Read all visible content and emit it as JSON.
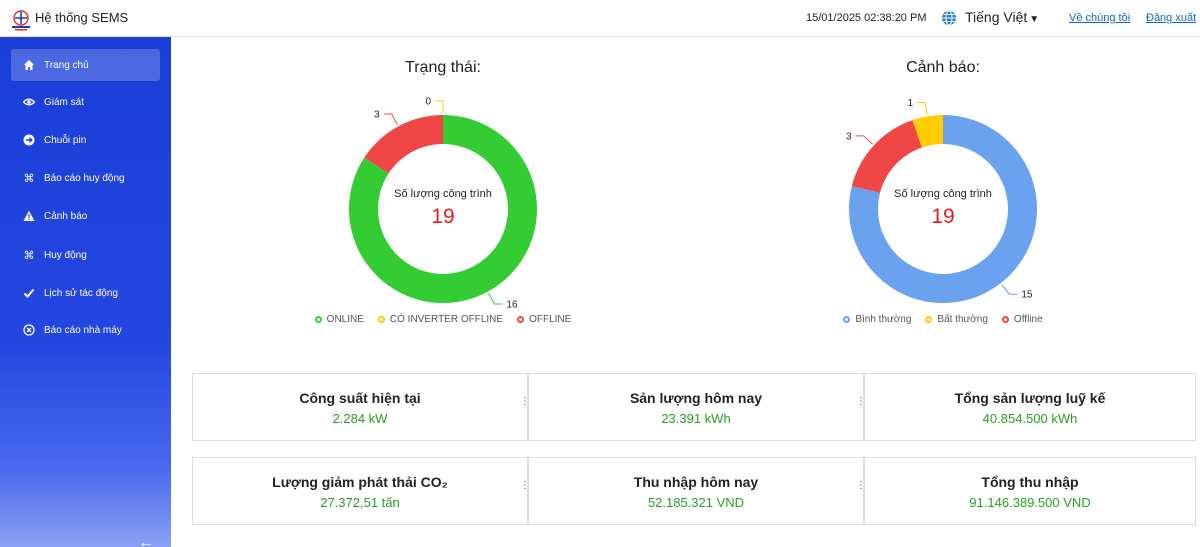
{
  "header": {
    "app_title": "Hệ thống SEMS",
    "datetime": "15/01/2025 02:38:20 PM",
    "language": "Tiếng Việt",
    "about_link": "Về chúng tôi",
    "logout_link": "Đăng xuất",
    "logo_icon": "evn-logo-icon",
    "language_icon": "globe-icon"
  },
  "sidebar": {
    "items": [
      {
        "label": "Trang chủ",
        "icon": "home-icon",
        "active": true
      },
      {
        "label": "Giám sát",
        "icon": "eye-icon"
      },
      {
        "label": "Chuỗi pin",
        "icon": "arrow-circle-icon"
      },
      {
        "label": "Báo cáo huy động",
        "icon": "command-icon"
      },
      {
        "label": "Cảnh báo",
        "icon": "warning-icon"
      },
      {
        "label": "Huy động",
        "icon": "command-icon"
      },
      {
        "label": "Lịch sử tác động",
        "icon": "check-icon"
      },
      {
        "label": "Báo cáo nhà máy",
        "icon": "close-circle-icon"
      }
    ],
    "collapse_icon": "arrow-left-icon"
  },
  "status_chart": {
    "title": "Trạng thái:",
    "center_label": "Số lượng công trình",
    "center_value": "19",
    "segments": [
      {
        "name": "ONLINE",
        "value": 16,
        "color": "#33cc33"
      },
      {
        "name": "CÓ INVERTER OFFLINE",
        "value": 0,
        "color": "#ffcc00"
      },
      {
        "name": "OFFLINE",
        "value": 3,
        "color": "#f04646"
      }
    ]
  },
  "warning_chart": {
    "title": "Cảnh báo:",
    "center_label": "Số lượng công trình",
    "center_value": "19",
    "segments": [
      {
        "name": "Bình thường",
        "value": 15,
        "color": "#6aa2f0"
      },
      {
        "name": "Bất thường",
        "value": 1,
        "color": "#ffcc00"
      },
      {
        "name": "Offline",
        "value": 3,
        "color": "#f04646"
      }
    ]
  },
  "stats": [
    {
      "title": "Công suất hiện tại",
      "value": "2.284 kW"
    },
    {
      "title": "Sản lượng hôm nay",
      "value": "23.391 kWh"
    },
    {
      "title": "Tổng sản lượng luỹ kế",
      "value": "40.854.500 kWh"
    },
    {
      "title": "Lượng giảm phát thải CO₂",
      "value": "27.372,51 tấn"
    },
    {
      "title": "Thu nhập hôm nay",
      "value": "52.185.321 VND"
    },
    {
      "title": "Tổng thu nhập",
      "value": "91.146.389.500 VND"
    }
  ],
  "colors": {
    "sidebar": "#1a3ed8",
    "accent_value": "#27a021",
    "center_value": "#e02020"
  }
}
